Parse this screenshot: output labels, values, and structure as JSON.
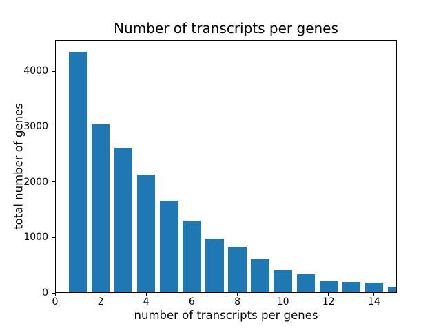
{
  "figure": {
    "background": "#ffffff",
    "text_color": "#000000"
  },
  "chart_data": {
    "type": "bar",
    "title": "Number of transcripts per genes",
    "xlabel": "number of transcripts per genes",
    "ylabel": "total number of genes",
    "x": [
      1,
      2,
      3,
      4,
      5,
      6,
      7,
      8,
      9,
      10,
      11,
      12,
      13,
      14,
      15
    ],
    "values": [
      4350,
      3030,
      2620,
      2130,
      1660,
      1300,
      980,
      830,
      610,
      410,
      330,
      220,
      200,
      180,
      110
    ],
    "bar_color": "#1f77b4",
    "bar_width": 0.8,
    "xlim": [
      0,
      15
    ],
    "ylim": [
      0,
      4560
    ],
    "xticks": [
      0,
      2,
      4,
      6,
      8,
      10,
      12,
      14
    ],
    "yticks": [
      0,
      1000,
      2000,
      3000,
      4000
    ],
    "grid": false,
    "legend": null
  }
}
